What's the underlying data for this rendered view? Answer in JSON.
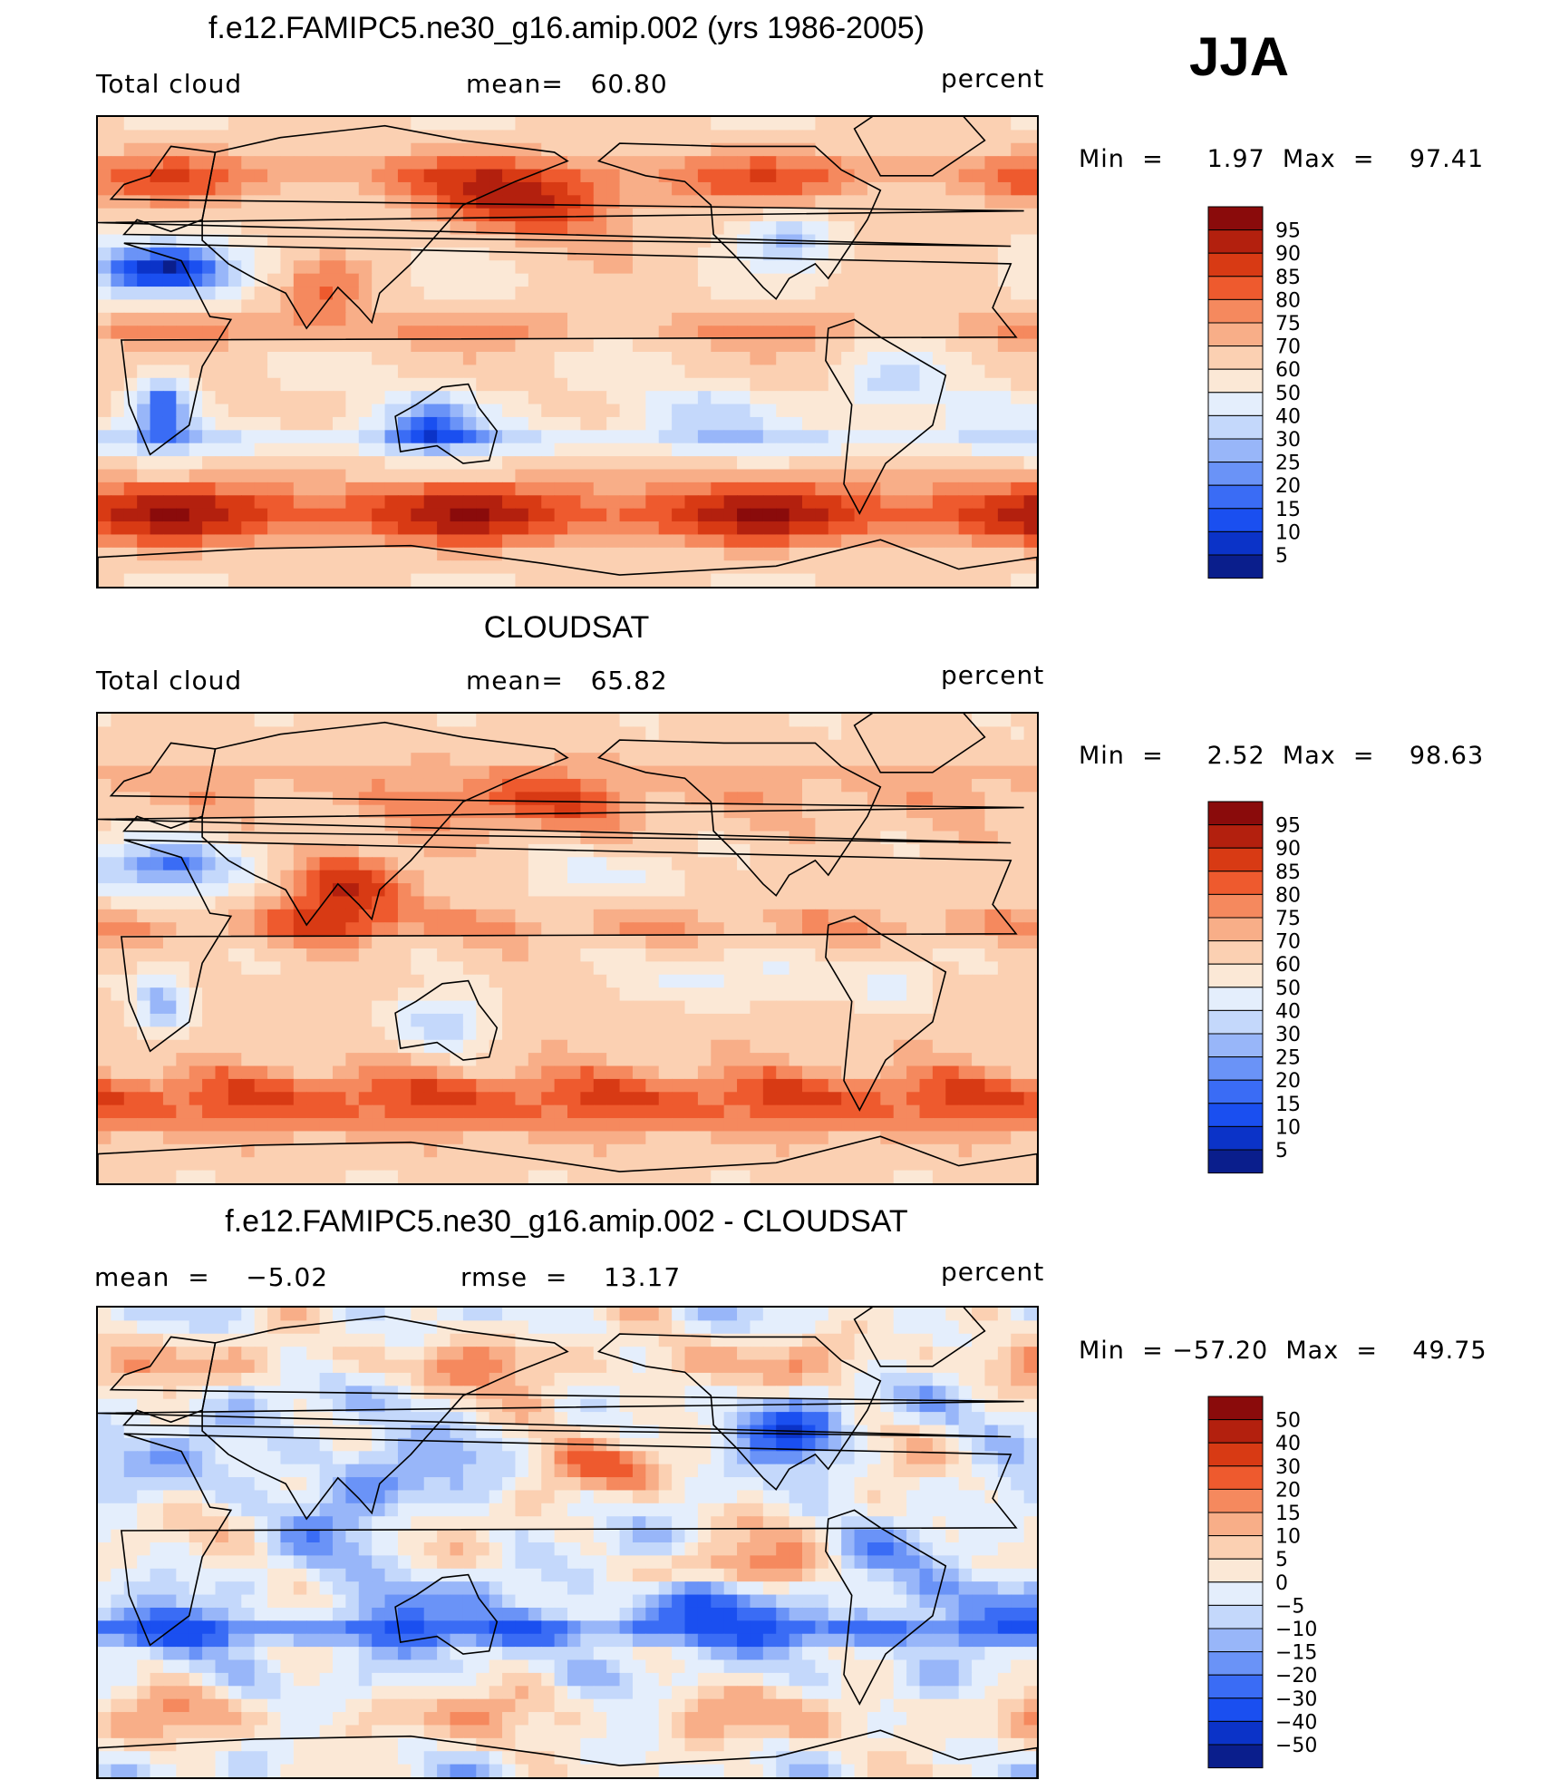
{
  "season": "JJA",
  "panels": [
    {
      "title": "f.e12.FAMIPC5.ne30_g16.amip.002 (yrs 1986-2005)",
      "left_label": "Total cloud",
      "center_label": "mean=   60.80",
      "units": "percent",
      "minmax": "Min  =     1.97  Max  =    97.41"
    },
    {
      "title": "CLOUDSAT",
      "left_label": "Total cloud",
      "center_label": "mean=   65.82",
      "units": "percent",
      "minmax": "Min  =     2.52  Max  =    98.63"
    },
    {
      "title": "f.e12.FAMIPC5.ne30_g16.amip.002 - CLOUDSAT",
      "left_label": "mean  =    −5.02",
      "center_label": "rmse  =    13.17",
      "units": "percent",
      "minmax": "Min  = −57.20  Max  =    49.75"
    }
  ],
  "chart_data": [
    {
      "type": "heatmap",
      "title": "f.e12.FAMIPC5.ne30_g16.amip.002 (yrs 1986-2005)",
      "field": "Total cloud",
      "units": "percent",
      "mean": 60.8,
      "min": 1.97,
      "max": 97.41,
      "levels": [
        5,
        10,
        15,
        20,
        25,
        30,
        40,
        50,
        60,
        70,
        75,
        80,
        85,
        90,
        95
      ],
      "level_labels": [
        "95",
        "90",
        "85",
        "80",
        "75",
        "70",
        "60",
        "50",
        "40",
        "30",
        "25",
        "20",
        "15",
        "10",
        "5"
      ],
      "colors": [
        "#0a1e8c",
        "#0b33c8",
        "#1a4ff0",
        "#3a6cf5",
        "#6a93f7",
        "#98b6f9",
        "#c4d8fb",
        "#e4eefc",
        "#fbe8d6",
        "#fbd0b2",
        "#f8ae88",
        "#f5895e",
        "#ee5a2e",
        "#d83a14",
        "#b3200e",
        "#8a0b0b"
      ]
    },
    {
      "type": "heatmap",
      "title": "CLOUDSAT",
      "field": "Total cloud",
      "units": "percent",
      "mean": 65.82,
      "min": 2.52,
      "max": 98.63,
      "levels": [
        5,
        10,
        15,
        20,
        25,
        30,
        40,
        50,
        60,
        70,
        75,
        80,
        85,
        90,
        95
      ],
      "level_labels": [
        "95",
        "90",
        "85",
        "80",
        "75",
        "70",
        "60",
        "50",
        "40",
        "30",
        "25",
        "20",
        "15",
        "10",
        "5"
      ],
      "colors": [
        "#0a1e8c",
        "#0b33c8",
        "#1a4ff0",
        "#3a6cf5",
        "#6a93f7",
        "#98b6f9",
        "#c4d8fb",
        "#e4eefc",
        "#fbe8d6",
        "#fbd0b2",
        "#f8ae88",
        "#f5895e",
        "#ee5a2e",
        "#d83a14",
        "#b3200e",
        "#8a0b0b"
      ]
    },
    {
      "type": "heatmap",
      "title": "f.e12.FAMIPC5.ne30_g16.amip.002 - CLOUDSAT",
      "field": "",
      "units": "percent",
      "mean": -5.02,
      "rmse": 13.17,
      "min": -57.2,
      "max": 49.75,
      "levels": [
        -50,
        -40,
        -30,
        -20,
        -15,
        -10,
        -5,
        0,
        5,
        10,
        15,
        20,
        30,
        40,
        50
      ],
      "level_labels": [
        "50",
        "40",
        "30",
        "20",
        "15",
        "10",
        "5",
        "0",
        "−5",
        "−10",
        "−15",
        "−20",
        "−30",
        "−40",
        "−50"
      ],
      "colors": [
        "#0a1e8c",
        "#0b33c8",
        "#1a4ff0",
        "#3a6cf5",
        "#6a93f7",
        "#98b6f9",
        "#c4d8fb",
        "#e4eefc",
        "#fbe8d6",
        "#fbd0b2",
        "#f8ae88",
        "#f5895e",
        "#ee5a2e",
        "#d83a14",
        "#b3200e",
        "#8a0b0b"
      ]
    }
  ]
}
